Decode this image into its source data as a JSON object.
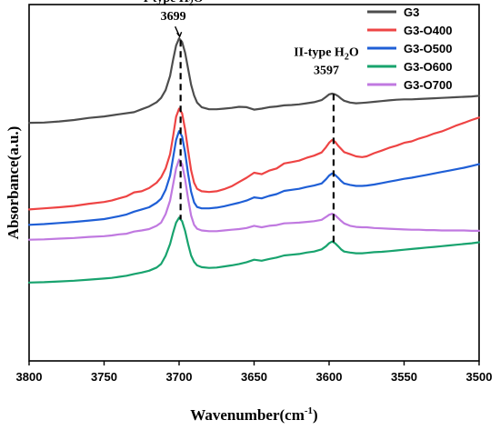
{
  "chart_data": {
    "type": "line",
    "xlabel": "Wavenumber(cm",
    "xlabel_sup": "-1",
    "xlabel_end": ")",
    "ylabel": "Absorbance(a.u.)",
    "xlim": [
      3800,
      3500
    ],
    "x_reversed": true,
    "ylim": [
      0,
      100
    ],
    "x_ticks": [
      "3800",
      "3750",
      "3700",
      "3650",
      "3600",
      "3550",
      "3500"
    ],
    "x_tick_values": [
      3800,
      3750,
      3700,
      3650,
      3600,
      3550,
      3500
    ],
    "grid": false,
    "legend_position": "top-right",
    "series": [
      {
        "name": "G3",
        "color": "#4d4d4d",
        "x": [
          3800,
          3790,
          3780,
          3770,
          3760,
          3750,
          3740,
          3730,
          3725,
          3720,
          3715,
          3712,
          3709,
          3706,
          3704,
          3702,
          3700,
          3698,
          3696,
          3694,
          3692,
          3690,
          3688,
          3685,
          3680,
          3675,
          3670,
          3665,
          3660,
          3655,
          3650,
          3645,
          3640,
          3635,
          3630,
          3625,
          3620,
          3615,
          3610,
          3605,
          3602,
          3600,
          3598,
          3596,
          3594,
          3592,
          3590,
          3586,
          3582,
          3578,
          3575,
          3570,
          3565,
          3560,
          3555,
          3550,
          3545,
          3540,
          3535,
          3530,
          3525,
          3520,
          3515,
          3510,
          3505,
          3500
        ],
        "y": [
          66.8,
          66.9,
          67.2,
          67.6,
          68.2,
          68.6,
          69.2,
          69.8,
          70.6,
          71.4,
          72.6,
          73.8,
          76,
          80,
          84.5,
          88.5,
          90.5,
          89.5,
          86.5,
          82,
          77.5,
          74.5,
          72.5,
          71.2,
          70.6,
          70.6,
          70.8,
          71,
          71.3,
          71.2,
          70.5,
          70.8,
          71.2,
          71.4,
          71.7,
          71.8,
          72,
          72.3,
          72.6,
          73.2,
          74.1,
          74.8,
          75,
          74.8,
          74.3,
          73.6,
          73,
          72.5,
          72.3,
          72.4,
          72.5,
          72.7,
          72.9,
          73.1,
          73.3,
          73.4,
          73.4,
          73.5,
          73.6,
          73.7,
          73.8,
          73.9,
          74,
          74.1,
          74.2,
          74.4
        ]
      },
      {
        "name": "G3-O400",
        "color": "#ee4444",
        "x": [
          3800,
          3790,
          3780,
          3770,
          3760,
          3750,
          3745,
          3740,
          3735,
          3730,
          3725,
          3720,
          3715,
          3712,
          3709,
          3706,
          3704,
          3702,
          3700,
          3698,
          3696,
          3694,
          3692,
          3690,
          3688,
          3685,
          3680,
          3675,
          3670,
          3665,
          3660,
          3655,
          3650,
          3645,
          3640,
          3635,
          3630,
          3625,
          3620,
          3615,
          3610,
          3605,
          3602,
          3600,
          3598,
          3596,
          3594,
          3592,
          3590,
          3586,
          3582,
          3578,
          3575,
          3570,
          3565,
          3560,
          3555,
          3550,
          3545,
          3540,
          3535,
          3530,
          3525,
          3520,
          3515,
          3510,
          3505,
          3500
        ],
        "y": [
          42.5,
          42.8,
          43.1,
          43.5,
          44.1,
          44.6,
          45,
          45.6,
          46.2,
          47.3,
          47.6,
          48.5,
          50,
          51.5,
          54,
          58,
          63,
          68.5,
          70.8,
          69.5,
          65,
          59,
          53.5,
          50,
          48.3,
          47.6,
          47.4,
          47.6,
          48.2,
          49,
          50.2,
          51.4,
          52.8,
          52.4,
          53.4,
          54,
          55.4,
          55.8,
          56.2,
          57,
          57.6,
          58.5,
          60,
          61.2,
          62,
          61.5,
          60.4,
          59.5,
          58.6,
          58,
          57.4,
          57.2,
          57.4,
          58.3,
          59,
          59.8,
          60.4,
          61.2,
          61.6,
          62.4,
          63,
          63.8,
          64.4,
          65.2,
          66.1,
          66.8,
          67.6,
          68.3
        ]
      },
      {
        "name": "G3-O500",
        "color": "#1f5fd6",
        "x": [
          3800,
          3790,
          3780,
          3770,
          3760,
          3750,
          3745,
          3740,
          3735,
          3730,
          3725,
          3720,
          3715,
          3712,
          3709,
          3706,
          3704,
          3702,
          3700,
          3698,
          3696,
          3694,
          3692,
          3690,
          3688,
          3685,
          3680,
          3675,
          3670,
          3665,
          3660,
          3655,
          3650,
          3645,
          3640,
          3635,
          3630,
          3625,
          3620,
          3615,
          3610,
          3605,
          3602,
          3600,
          3598,
          3596,
          3594,
          3592,
          3590,
          3586,
          3582,
          3578,
          3575,
          3570,
          3565,
          3560,
          3555,
          3550,
          3545,
          3540,
          3535,
          3530,
          3525,
          3520,
          3515,
          3510,
          3505,
          3500
        ],
        "y": [
          38.2,
          38.4,
          38.7,
          39,
          39.4,
          39.8,
          40.2,
          40.6,
          41.1,
          41.9,
          42.5,
          43.1,
          44.4,
          45.5,
          48,
          52,
          57,
          62,
          64.5,
          63,
          58.5,
          52.5,
          47.5,
          44.5,
          43.2,
          42.8,
          42.8,
          43,
          43.4,
          43.9,
          44.4,
          45,
          45.9,
          45.6,
          46.3,
          46.8,
          47.7,
          48,
          48.3,
          48.8,
          49.2,
          49.8,
          51,
          52,
          52.6,
          52.2,
          51.4,
          50.5,
          49.8,
          49.4,
          49.1,
          49.1,
          49.2,
          49.5,
          49.9,
          50.3,
          50.7,
          51.1,
          51.4,
          51.8,
          52.2,
          52.6,
          53,
          53.4,
          53.8,
          54.2,
          54.7,
          55.2
        ]
      },
      {
        "name": "G3-O600",
        "color": "#18a36e",
        "x": [
          3800,
          3790,
          3780,
          3770,
          3760,
          3750,
          3745,
          3740,
          3735,
          3730,
          3725,
          3720,
          3715,
          3712,
          3709,
          3706,
          3704,
          3702,
          3700,
          3698,
          3696,
          3694,
          3692,
          3690,
          3688,
          3685,
          3680,
          3675,
          3670,
          3665,
          3660,
          3655,
          3650,
          3645,
          3640,
          3635,
          3630,
          3625,
          3620,
          3615,
          3610,
          3605,
          3602,
          3600,
          3598,
          3596,
          3594,
          3592,
          3590,
          3586,
          3582,
          3578,
          3575,
          3570,
          3565,
          3560,
          3555,
          3550,
          3545,
          3540,
          3535,
          3530,
          3525,
          3520,
          3515,
          3510,
          3505,
          3500
        ],
        "y": [
          22,
          22.1,
          22.3,
          22.5,
          22.8,
          23.1,
          23.3,
          23.6,
          23.9,
          24.4,
          24.8,
          25.3,
          26.2,
          27.2,
          29.5,
          32.8,
          36,
          38.8,
          40.2,
          39.2,
          36.5,
          32.8,
          29.6,
          27.8,
          26.8,
          26.3,
          26.1,
          26.2,
          26.5,
          26.8,
          27.2,
          27.7,
          28.4,
          28.1,
          28.6,
          29,
          29.6,
          29.8,
          30,
          30.4,
          30.7,
          31.3,
          32.2,
          33,
          33.5,
          33,
          32.2,
          31.3,
          30.7,
          30.4,
          30.2,
          30.2,
          30.3,
          30.5,
          30.6,
          30.8,
          31,
          31.2,
          31.4,
          31.6,
          31.8,
          32,
          32.2,
          32.4,
          32.6,
          32.8,
          33,
          33.3
        ]
      },
      {
        "name": "G3-O700",
        "color": "#c079e0",
        "x": [
          3800,
          3790,
          3780,
          3770,
          3760,
          3750,
          3745,
          3740,
          3735,
          3730,
          3725,
          3720,
          3715,
          3712,
          3709,
          3706,
          3704,
          3702,
          3700,
          3698,
          3696,
          3694,
          3692,
          3690,
          3688,
          3685,
          3680,
          3675,
          3670,
          3665,
          3660,
          3655,
          3650,
          3645,
          3640,
          3635,
          3630,
          3625,
          3620,
          3615,
          3610,
          3605,
          3602,
          3600,
          3598,
          3596,
          3594,
          3592,
          3590,
          3586,
          3582,
          3578,
          3575,
          3570,
          3565,
          3560,
          3555,
          3550,
          3545,
          3540,
          3535,
          3530,
          3525,
          3520,
          3515,
          3510,
          3505,
          3500
        ],
        "y": [
          34,
          34.1,
          34.3,
          34.5,
          34.8,
          35,
          35.2,
          35.5,
          35.7,
          36.3,
          36.6,
          37,
          37.9,
          38.8,
          41.2,
          45,
          49.5,
          54,
          56.5,
          55.2,
          51,
          45.5,
          40.8,
          38.2,
          37.1,
          36.6,
          36.4,
          36.4,
          36.6,
          36.8,
          37,
          37.3,
          37.9,
          37.5,
          37.9,
          38.1,
          38.6,
          38.7,
          38.8,
          39,
          39.2,
          39.6,
          40.4,
          41,
          41.3,
          40.9,
          40.1,
          39.3,
          38.6,
          37.9,
          37.6,
          37.5,
          37.5,
          37.3,
          37.2,
          37.1,
          37,
          36.9,
          36.8,
          36.8,
          36.7,
          36.7,
          36.6,
          36.6,
          36.6,
          36.6,
          36.5,
          36.5
        ]
      }
    ],
    "annotations": [
      {
        "label": "I-type H",
        "sub": "2",
        "label_end": "O",
        "value": "3699",
        "x": 3699
      },
      {
        "label": "II-type H",
        "sub": "2",
        "label_end": "O",
        "value": "3597",
        "x": 3597
      }
    ]
  }
}
